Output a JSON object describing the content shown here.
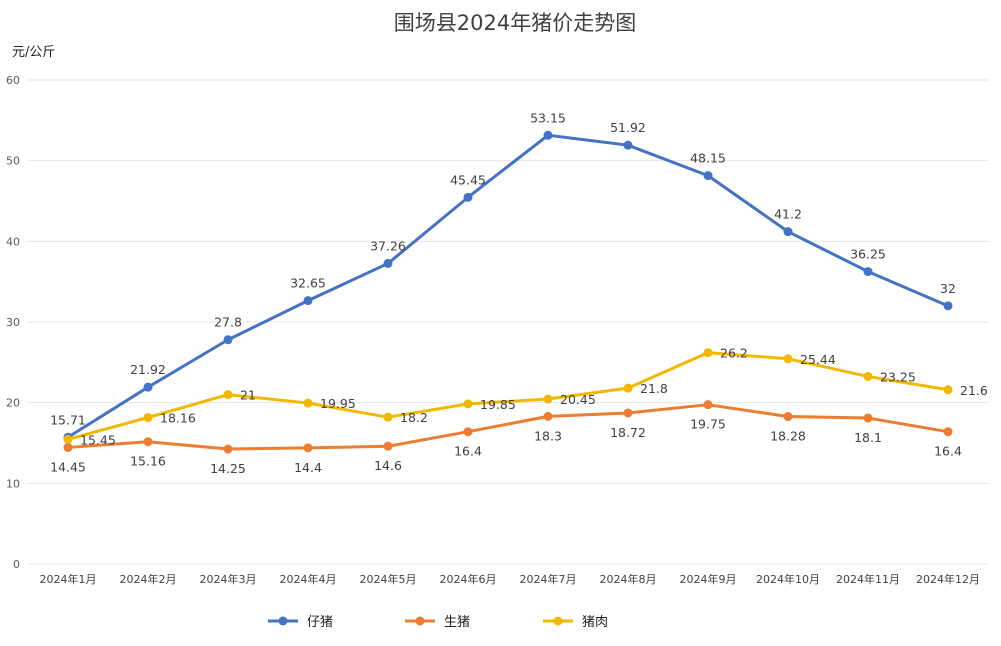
{
  "chart_data": {
    "type": "line",
    "title": "围场县2024年猪价走势图",
    "ylabel": "元/公斤",
    "xlabel": "",
    "ylim": [
      0,
      60
    ],
    "yticks": [
      0,
      10,
      20,
      30,
      40,
      50,
      60
    ],
    "grid": true,
    "legend_position": "bottom",
    "categories": [
      "2024年1月",
      "2024年2月",
      "2024年3月",
      "2024年4月",
      "2024年5月",
      "2024年6月",
      "2024年7月",
      "2024年8月",
      "2024年9月",
      "2024年10月",
      "2024年11月",
      "2024年12月"
    ],
    "series": [
      {
        "name": "仔猪",
        "color": "#4472c4",
        "label_position": "above",
        "values": [
          15.71,
          21.92,
          27.8,
          32.65,
          37.26,
          45.45,
          53.15,
          51.92,
          48.15,
          41.2,
          36.25,
          32
        ]
      },
      {
        "name": "生猪",
        "color": "#ed7d31",
        "label_position": "below",
        "values": [
          14.45,
          15.16,
          14.25,
          14.4,
          14.6,
          16.4,
          18.3,
          18.72,
          19.75,
          18.28,
          18.1,
          16.4
        ]
      },
      {
        "name": "猪肉",
        "color": "#f2b800",
        "label_position": "right",
        "values": [
          15.45,
          18.16,
          21,
          19.95,
          18.2,
          19.85,
          20.45,
          21.8,
          26.2,
          25.44,
          23.25,
          21.6
        ]
      }
    ]
  }
}
